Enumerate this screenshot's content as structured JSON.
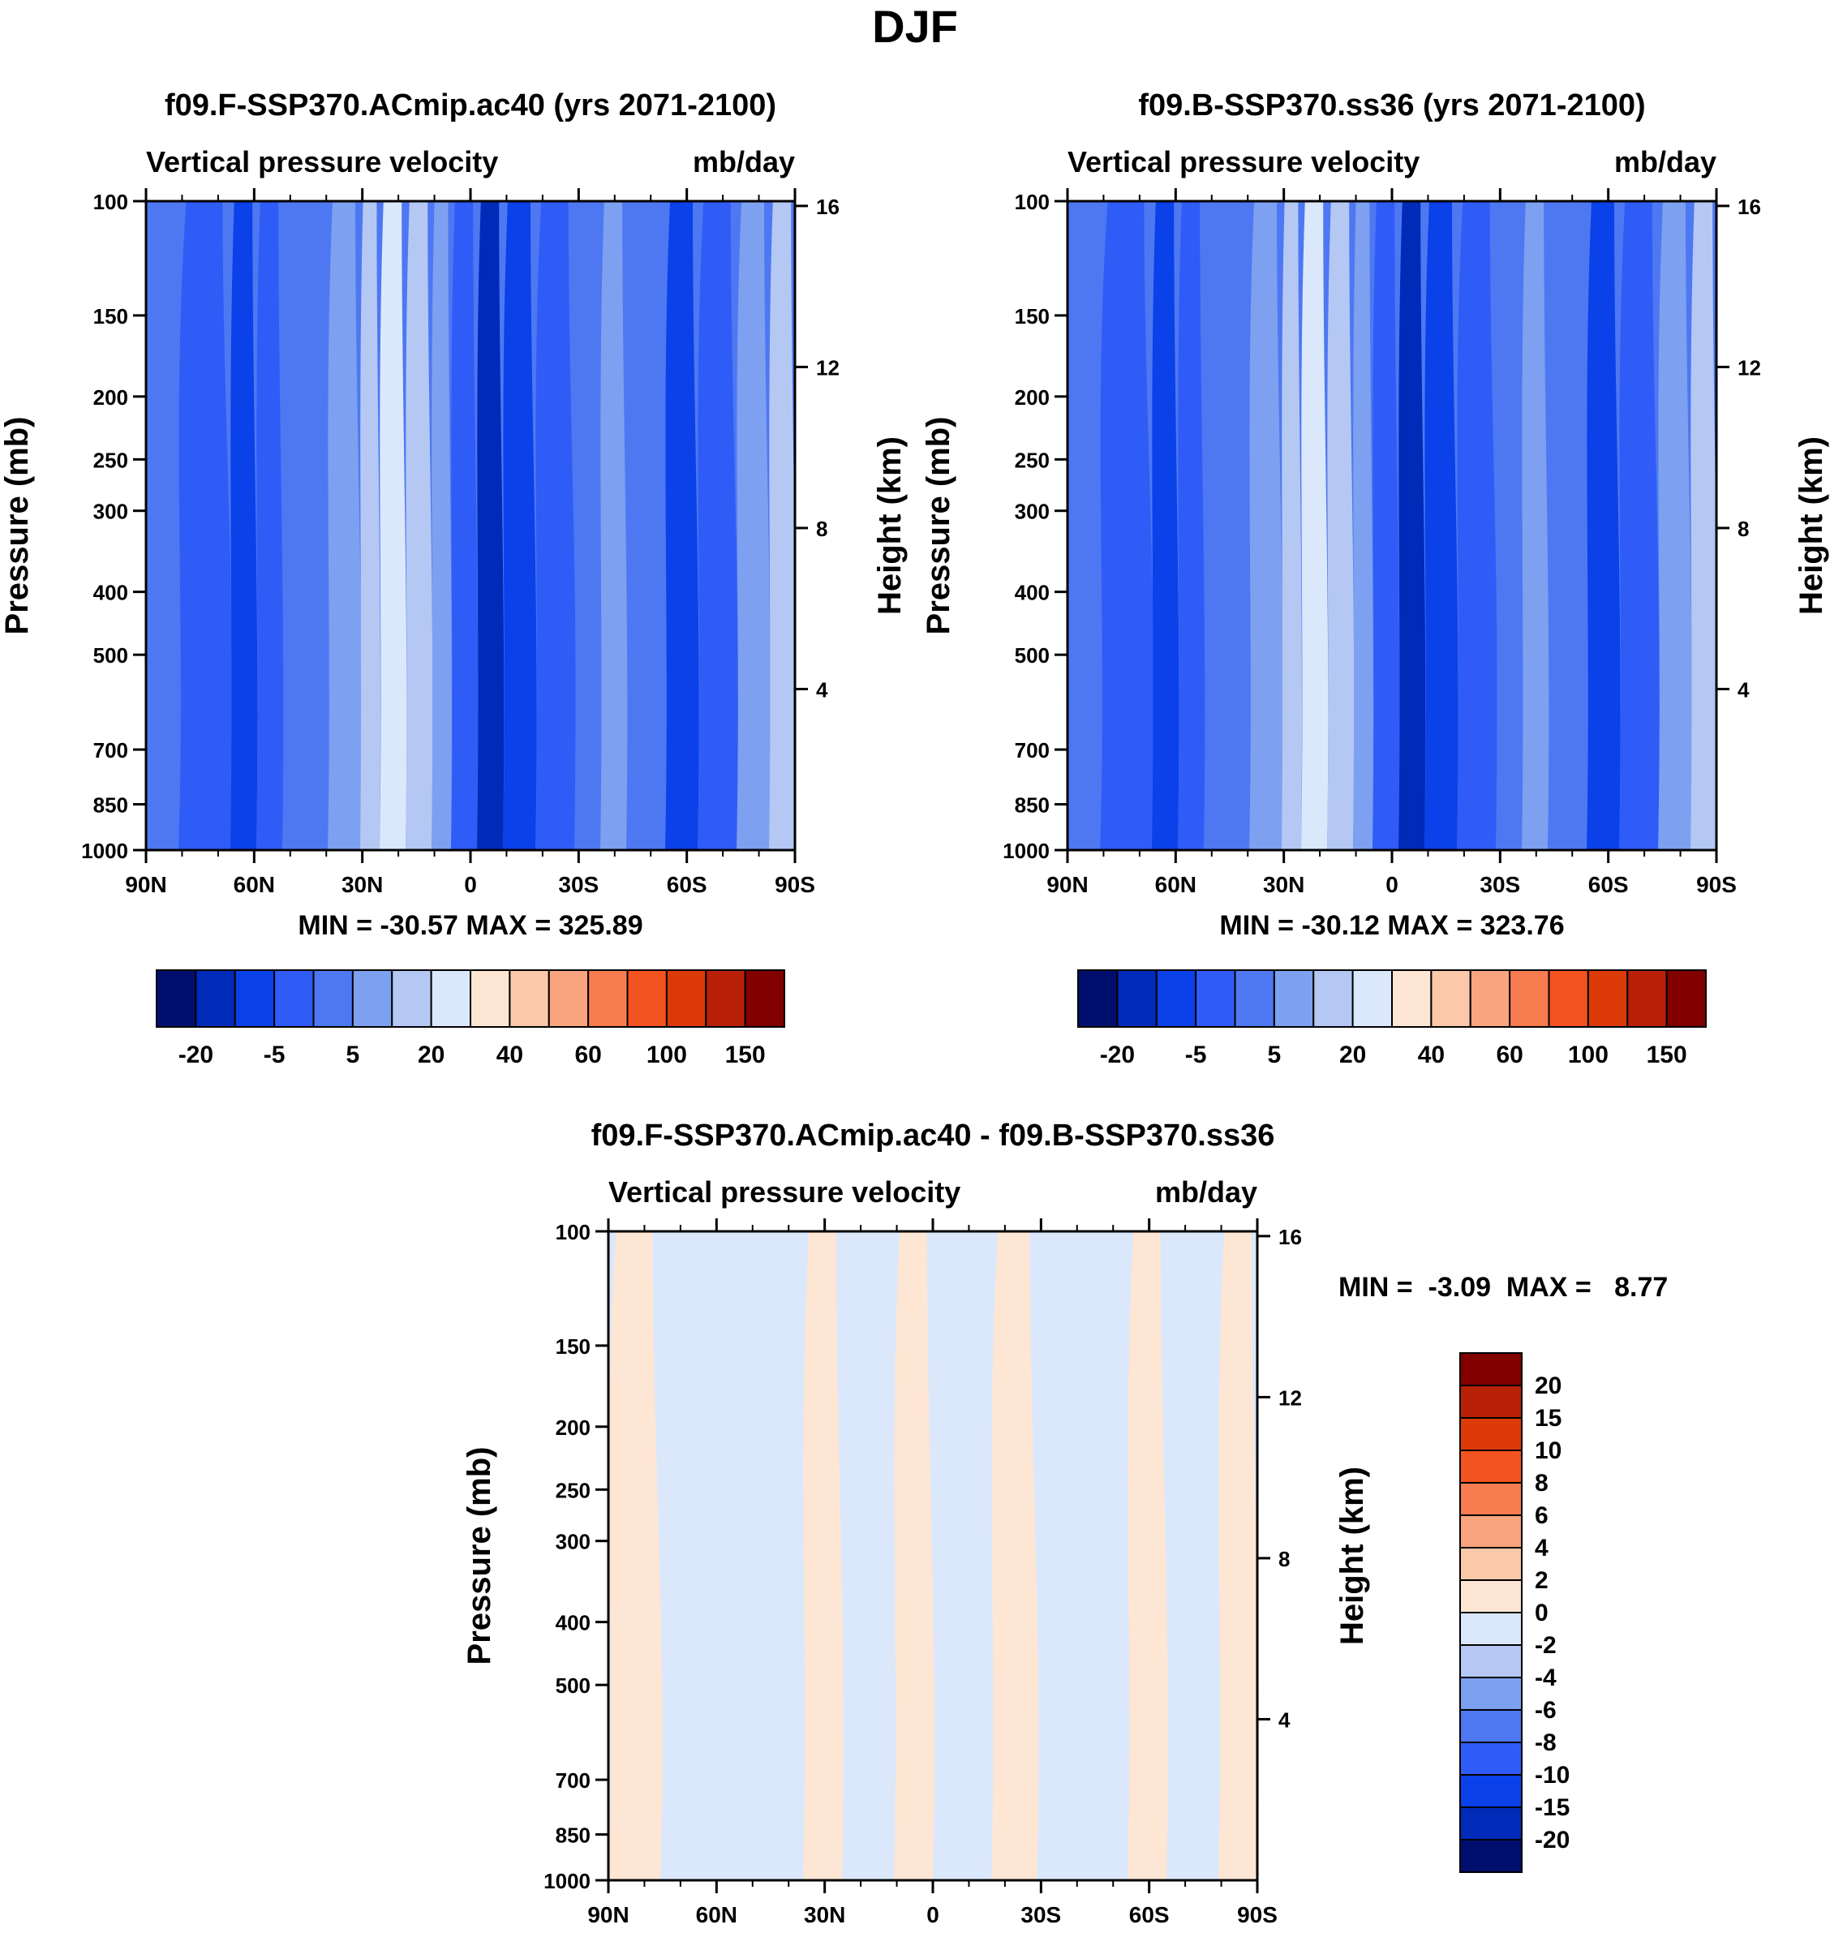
{
  "figure_title": "DJF",
  "chart_data": [
    {
      "type": "heatmap",
      "title": "f09.F-SSP370.ACmip.ac40 (yrs 2071-2100)",
      "subtitle_left": "Vertical pressure velocity",
      "subtitle_right": "mb/day",
      "xlabel": "",
      "ylabel": "Pressure (mb)",
      "y2label": "Height (km)",
      "x_ticks": [
        "90N",
        "60N",
        "30N",
        "0",
        "30S",
        "60S",
        "90S"
      ],
      "x_range": [
        90,
        -90
      ],
      "y_ticks": [
        100,
        150,
        200,
        250,
        300,
        400,
        500,
        700,
        850,
        1000
      ],
      "y_range": [
        1000,
        100
      ],
      "y2_ticks": [
        16,
        12,
        8,
        4
      ],
      "stats_text": "MIN = -30.57  MAX = 325.89",
      "min": -30.57,
      "max": 325.89,
      "colorbar_ticks": [
        "-20",
        "-5",
        "5",
        "20",
        "40",
        "60",
        "100",
        "150"
      ],
      "colorbar_colors": [
        "#000f6e",
        "#002ab8",
        "#0a41e8",
        "#2f5cf7",
        "#4e78f2",
        "#7da0f0",
        "#b4c8f3",
        "#dbe8fc",
        "#fde6d4",
        "#fcc8aa",
        "#f9a47e",
        "#f77c4f",
        "#f2531f",
        "#dd3a0a",
        "#b82108",
        "#820000"
      ]
    },
    {
      "type": "heatmap",
      "title": "f09.B-SSP370.ss36 (yrs 2071-2100)",
      "subtitle_left": "Vertical pressure velocity",
      "subtitle_right": "mb/day",
      "xlabel": "",
      "ylabel": "Pressure (mb)",
      "y2label": "Height (km)",
      "x_ticks": [
        "90N",
        "60N",
        "30N",
        "0",
        "30S",
        "60S",
        "90S"
      ],
      "x_range": [
        90,
        -90
      ],
      "y_ticks": [
        100,
        150,
        200,
        250,
        300,
        400,
        500,
        700,
        850,
        1000
      ],
      "y_range": [
        1000,
        100
      ],
      "y2_ticks": [
        16,
        12,
        8,
        4
      ],
      "stats_text": "MIN = -30.12  MAX = 323.76",
      "min": -30.12,
      "max": 323.76,
      "colorbar_ticks": [
        "-20",
        "-5",
        "5",
        "20",
        "40",
        "60",
        "100",
        "150"
      ],
      "colorbar_colors": [
        "#000f6e",
        "#002ab8",
        "#0a41e8",
        "#2f5cf7",
        "#4e78f2",
        "#7da0f0",
        "#b4c8f3",
        "#dbe8fc",
        "#fde6d4",
        "#fcc8aa",
        "#f9a47e",
        "#f77c4f",
        "#f2531f",
        "#dd3a0a",
        "#b82108",
        "#820000"
      ]
    },
    {
      "type": "heatmap",
      "title": "f09.F-SSP370.ACmip.ac40 - f09.B-SSP370.ss36",
      "subtitle_left": "Vertical pressure velocity",
      "subtitle_right": "mb/day",
      "xlabel": "",
      "ylabel": "Pressure (mb)",
      "y2label": "Height (km)",
      "x_ticks": [
        "90N",
        "60N",
        "30N",
        "0",
        "30S",
        "60S",
        "90S"
      ],
      "x_range": [
        90,
        -90
      ],
      "y_ticks": [
        100,
        150,
        200,
        250,
        300,
        400,
        500,
        700,
        850,
        1000
      ],
      "y_range": [
        1000,
        100
      ],
      "y2_ticks": [
        16,
        12,
        8,
        4
      ],
      "stats_text": "MIN =  -3.09  MAX =   8.77",
      "min": -3.09,
      "max": 8.77,
      "colorbar_ticks": [
        "20",
        "15",
        "10",
        "8",
        "6",
        "4",
        "2",
        "0",
        "-2",
        "-4",
        "-6",
        "-8",
        "-10",
        "-15",
        "-20"
      ],
      "colorbar_colors": [
        "#820000",
        "#b82108",
        "#dd3a0a",
        "#f2531f",
        "#f77c4f",
        "#f9a47e",
        "#fcc8aa",
        "#fde6d4",
        "#dbe8fc",
        "#b4c8f3",
        "#7da0f0",
        "#4e78f2",
        "#2f5cf7",
        "#0a41e8",
        "#002ab8",
        "#000f6e"
      ]
    }
  ]
}
